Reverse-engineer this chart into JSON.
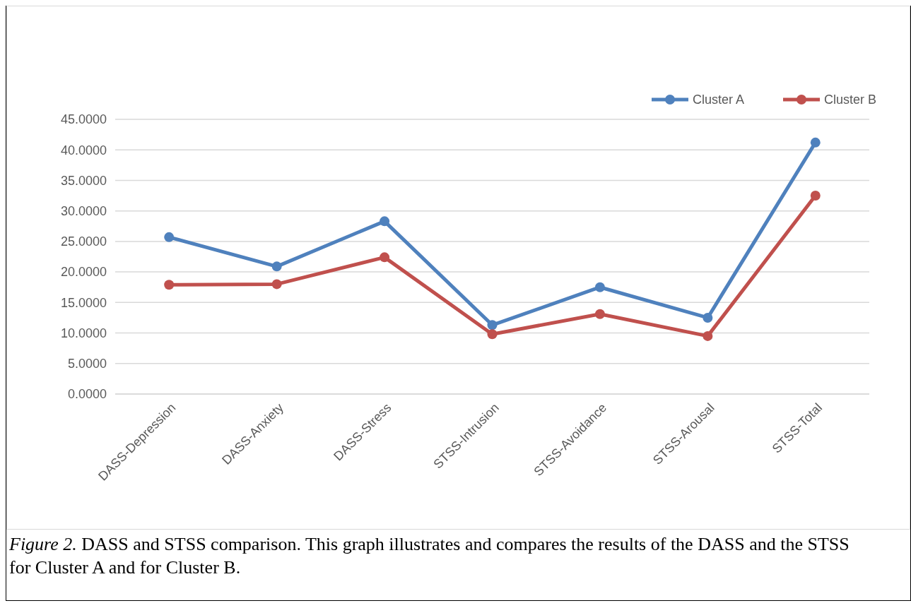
{
  "chart_data": {
    "type": "line",
    "categories": [
      "DASS-Depression",
      "DASS-Anxiety",
      "DASS-Stress",
      "STSS-Intrusion",
      "STSS-Avoidance",
      "STSS-Arousal",
      "STSS-Total"
    ],
    "series": [
      {
        "name": "Cluster A",
        "color": "#4f81bd",
        "values": [
          25.7,
          20.9,
          28.3,
          11.3,
          17.5,
          12.5,
          41.2
        ]
      },
      {
        "name": "Cluster B",
        "color": "#c0504d",
        "values": [
          17.9,
          18.0,
          22.4,
          9.8,
          13.1,
          9.5,
          32.5
        ]
      }
    ],
    "ylim": [
      0,
      45
    ],
    "yticks": [
      {
        "value": 0,
        "label": "0.0000"
      },
      {
        "value": 5,
        "label": "5.0000"
      },
      {
        "value": 10,
        "label": "10.0000"
      },
      {
        "value": 15,
        "label": "15.0000"
      },
      {
        "value": 20,
        "label": "20.0000"
      },
      {
        "value": 25,
        "label": "25.0000"
      },
      {
        "value": 30,
        "label": "30.0000"
      },
      {
        "value": 35,
        "label": "35.0000"
      },
      {
        "value": 40,
        "label": "40.0000"
      },
      {
        "value": 45,
        "label": "45.0000"
      }
    ],
    "grid": "y",
    "legend": "top right",
    "marker": "circle",
    "line_style": "solid",
    "annotations": [
      "Figure 2.",
      "DASS and STSS comparison. This graph illustrates and compares the results of the DASS and the STSS for Cluster A and for Cluster B."
    ]
  }
}
